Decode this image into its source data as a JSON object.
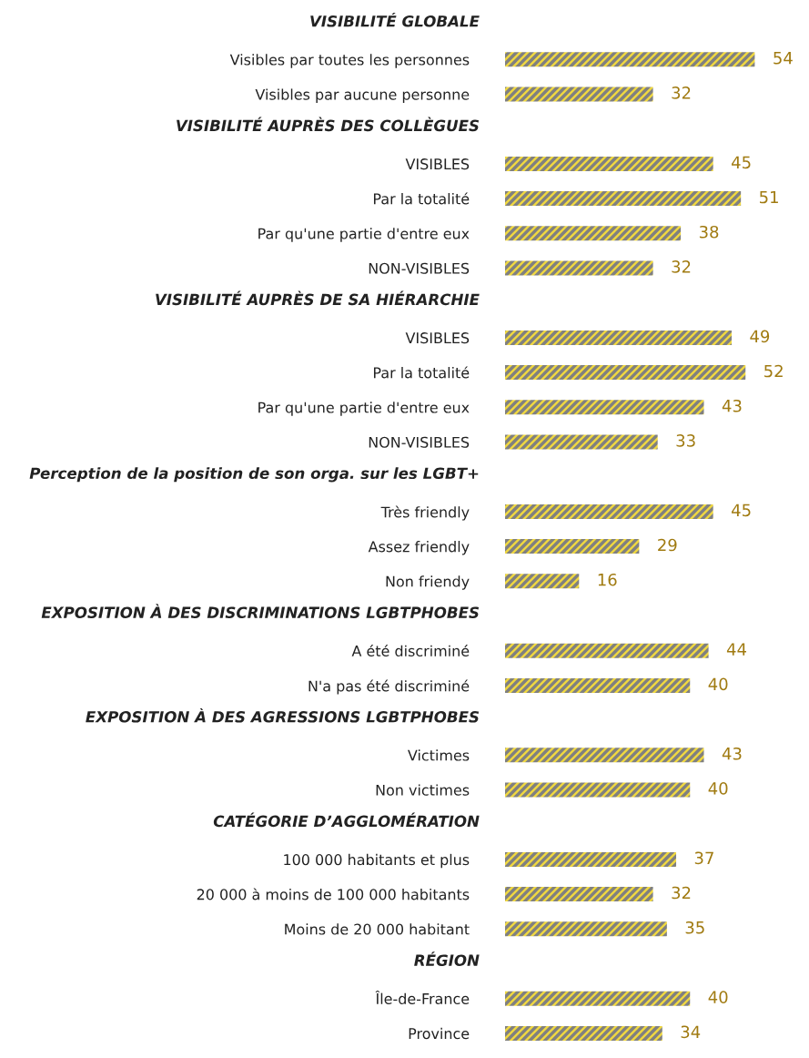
{
  "chart_data": [
    {
      "type": "bar",
      "orientation": "horizontal",
      "title": "VISIBILITÉ GLOBALE",
      "categories": [
        "Visibles par toutes les personnes",
        "Visibles par aucune personne"
      ],
      "values": [
        54,
        32
      ],
      "color": "#f0d840",
      "data_labels": true
    },
    {
      "type": "bar",
      "orientation": "horizontal",
      "title": "VISIBILITÉ AUPRÈS DES COLLÈGUES",
      "categories": [
        "VISIBLES",
        "Par la totalité",
        "Par qu'une partie d'entre eux",
        "NON-VISIBLES"
      ],
      "values": [
        45,
        51,
        38,
        32
      ],
      "color": "#f0d840",
      "data_labels": true
    },
    {
      "type": "bar",
      "orientation": "horizontal",
      "title": "VISIBILITÉ AUPRÈS DE SA HIÉRARCHIE",
      "categories": [
        "VISIBLES",
        "Par la totalité",
        "Par qu'une partie d'entre eux",
        "NON-VISIBLES"
      ],
      "values": [
        49,
        52,
        43,
        33
      ],
      "color": "#f0d840",
      "data_labels": true
    },
    {
      "type": "bar",
      "orientation": "horizontal",
      "title": "Perception de la position de son orga. sur les LGBT+",
      "categories": [
        "Très friendly",
        "Assez friendly",
        "Non friendy"
      ],
      "values": [
        45,
        29,
        16
      ],
      "color": "#f0d840",
      "data_labels": true
    },
    {
      "type": "bar",
      "orientation": "horizontal",
      "title": "EXPOSITION À DES DISCRIMINATIONS LGBTPHOBES",
      "categories": [
        "A été discriminé",
        "N'a pas été discriminé"
      ],
      "values": [
        44,
        40
      ],
      "color": "#f0d840",
      "data_labels": true
    },
    {
      "type": "bar",
      "orientation": "horizontal",
      "title": "EXPOSITION À DES AGRESSIONS LGBTPHOBES",
      "categories": [
        "Victimes",
        "Non victimes"
      ],
      "values": [
        43,
        40
      ],
      "color": "#f0d840",
      "data_labels": true
    },
    {
      "type": "bar",
      "orientation": "horizontal",
      "title": "CATÉGORIE D’AGGLOMÉRATION",
      "categories": [
        "100 000 habitants et plus",
        "20 000 à moins de 100 000 habitants",
        "Moins de 20 000 habitant"
      ],
      "values": [
        37,
        32,
        35
      ],
      "color": "#f0d840",
      "data_labels": true
    },
    {
      "type": "bar",
      "orientation": "horizontal",
      "title": "RÉGION",
      "categories": [
        "Île-de-France",
        "Province"
      ],
      "values": [
        40,
        34
      ],
      "color": "#f0d840",
      "data_labels": true
    }
  ]
}
